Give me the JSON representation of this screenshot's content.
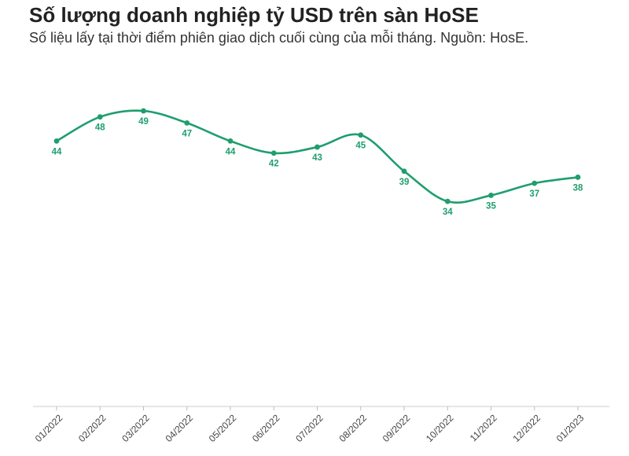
{
  "chart_data": {
    "type": "line",
    "title": "Số lượng doanh nghiệp tỷ USD trên sàn HoSE",
    "subtitle": "Số liệu lấy tại thời điểm phiên giao dịch cuối cùng của mỗi tháng. Nguồn: HosE.",
    "categories": [
      "01/2022",
      "02/2022",
      "03/2022",
      "04/2022",
      "05/2022",
      "06/2022",
      "07/2022",
      "08/2022",
      "09/2022",
      "10/2022",
      "11/2022",
      "12/2022",
      "01/2023"
    ],
    "series": [
      {
        "values": [
          44,
          48,
          49,
          47,
          44,
          42,
          43,
          45,
          39,
          34,
          35,
          37,
          38
        ]
      }
    ],
    "ylim": [
      0,
      55
    ],
    "grid": false,
    "line_color": "#1f9e6e",
    "label_color": "#1f9e6e"
  }
}
